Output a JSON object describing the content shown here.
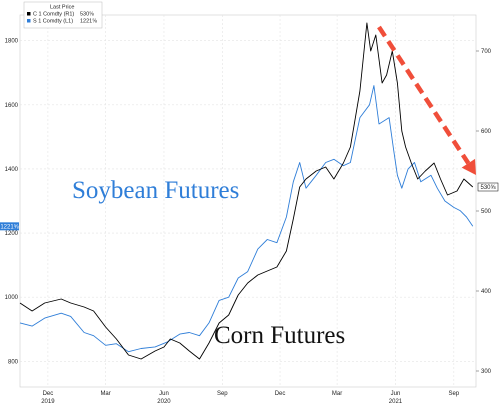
{
  "chart_data": {
    "type": "line",
    "legend": {
      "title": "Last Price",
      "entries": [
        {
          "ticker": "C 1 Comdty (R1)",
          "value": "530⅝",
          "color": "#000000"
        },
        {
          "ticker": "S 1 Comdty (L1)",
          "value": "1221⅝",
          "color": "#2f7ed8"
        }
      ],
      "placement": "top-left"
    },
    "left_axis": {
      "ticks": [
        800,
        1000,
        1200,
        1400,
        1600,
        1800
      ],
      "range": [
        720,
        1880
      ],
      "series": "S 1 Comdty"
    },
    "right_axis": {
      "ticks": [
        300,
        400,
        500,
        600,
        700
      ],
      "range": [
        280,
        745
      ],
      "series": "C 1 Comdty"
    },
    "x_axis": {
      "range": [
        "2019-11-01",
        "2021-10-20"
      ],
      "month_ticks": [
        {
          "label": "Dec",
          "date": "2019-12-15"
        },
        {
          "label": "Mar",
          "date": "2020-03-15"
        },
        {
          "label": "Jun",
          "date": "2020-06-15"
        },
        {
          "label": "Sep",
          "date": "2020-09-15"
        },
        {
          "label": "Dec",
          "date": "2020-12-15"
        },
        {
          "label": "Mar",
          "date": "2021-03-15"
        },
        {
          "label": "Jun",
          "date": "2021-06-15"
        },
        {
          "label": "Sep",
          "date": "2021-09-15"
        }
      ],
      "year_labels": [
        {
          "label": "2019",
          "date": "2019-12-15"
        },
        {
          "label": "2020",
          "date": "2020-06-15"
        },
        {
          "label": "2021",
          "date": "2021-06-15"
        }
      ]
    },
    "grid": true,
    "series": [
      {
        "name": "S 1 Comdty",
        "label": "Soybean Futures",
        "axis": "left",
        "color": "#2f7ed8",
        "last_value_label": "1221⅝",
        "points": [
          [
            "2019-11-01",
            920
          ],
          [
            "2019-11-20",
            910
          ],
          [
            "2019-12-10",
            935
          ],
          [
            "2020-01-05",
            950
          ],
          [
            "2020-01-20",
            940
          ],
          [
            "2020-02-10",
            890
          ],
          [
            "2020-02-25",
            880
          ],
          [
            "2020-03-15",
            850
          ],
          [
            "2020-04-01",
            855
          ],
          [
            "2020-04-20",
            830
          ],
          [
            "2020-05-10",
            840
          ],
          [
            "2020-06-01",
            845
          ],
          [
            "2020-06-20",
            860
          ],
          [
            "2020-07-10",
            885
          ],
          [
            "2020-07-25",
            890
          ],
          [
            "2020-08-10",
            880
          ],
          [
            "2020-08-25",
            920
          ],
          [
            "2020-09-10",
            990
          ],
          [
            "2020-09-25",
            1000
          ],
          [
            "2020-10-10",
            1060
          ],
          [
            "2020-10-25",
            1080
          ],
          [
            "2020-11-10",
            1150
          ],
          [
            "2020-11-25",
            1180
          ],
          [
            "2020-12-10",
            1170
          ],
          [
            "2020-12-25",
            1250
          ],
          [
            "2021-01-05",
            1360
          ],
          [
            "2021-01-15",
            1420
          ],
          [
            "2021-01-25",
            1340
          ],
          [
            "2021-02-10",
            1380
          ],
          [
            "2021-02-25",
            1420
          ],
          [
            "2021-03-10",
            1430
          ],
          [
            "2021-03-25",
            1410
          ],
          [
            "2021-04-05",
            1420
          ],
          [
            "2021-04-20",
            1560
          ],
          [
            "2021-05-05",
            1600
          ],
          [
            "2021-05-12",
            1660
          ],
          [
            "2021-05-20",
            1540
          ],
          [
            "2021-06-05",
            1560
          ],
          [
            "2021-06-12",
            1460
          ],
          [
            "2021-06-18",
            1380
          ],
          [
            "2021-06-25",
            1340
          ],
          [
            "2021-07-05",
            1400
          ],
          [
            "2021-07-15",
            1420
          ],
          [
            "2021-07-25",
            1360
          ],
          [
            "2021-08-10",
            1380
          ],
          [
            "2021-08-20",
            1340
          ],
          [
            "2021-09-01",
            1300
          ],
          [
            "2021-09-15",
            1280
          ],
          [
            "2021-09-25",
            1270
          ],
          [
            "2021-10-05",
            1250
          ],
          [
            "2021-10-15",
            1221
          ]
        ]
      },
      {
        "name": "C 1 Comdty",
        "label": "Corn Futures",
        "axis": "right",
        "color": "#000000",
        "last_value_label": "530⅝",
        "points": [
          [
            "2019-11-01",
            385
          ],
          [
            "2019-11-20",
            375
          ],
          [
            "2019-12-10",
            385
          ],
          [
            "2020-01-05",
            390
          ],
          [
            "2020-01-20",
            385
          ],
          [
            "2020-02-10",
            380
          ],
          [
            "2020-02-25",
            375
          ],
          [
            "2020-03-15",
            355
          ],
          [
            "2020-04-01",
            340
          ],
          [
            "2020-04-20",
            320
          ],
          [
            "2020-05-10",
            315
          ],
          [
            "2020-06-01",
            325
          ],
          [
            "2020-06-15",
            330
          ],
          [
            "2020-06-25",
            340
          ],
          [
            "2020-07-10",
            335
          ],
          [
            "2020-07-25",
            325
          ],
          [
            "2020-08-10",
            315
          ],
          [
            "2020-08-25",
            335
          ],
          [
            "2020-09-10",
            360
          ],
          [
            "2020-09-25",
            370
          ],
          [
            "2020-10-10",
            395
          ],
          [
            "2020-10-25",
            410
          ],
          [
            "2020-11-10",
            420
          ],
          [
            "2020-11-25",
            425
          ],
          [
            "2020-12-10",
            430
          ],
          [
            "2020-12-25",
            450
          ],
          [
            "2021-01-05",
            490
          ],
          [
            "2021-01-15",
            530
          ],
          [
            "2021-01-25",
            540
          ],
          [
            "2021-02-10",
            550
          ],
          [
            "2021-02-25",
            555
          ],
          [
            "2021-03-10",
            540
          ],
          [
            "2021-03-25",
            560
          ],
          [
            "2021-04-05",
            580
          ],
          [
            "2021-04-20",
            650
          ],
          [
            "2021-05-01",
            735
          ],
          [
            "2021-05-07",
            700
          ],
          [
            "2021-05-15",
            720
          ],
          [
            "2021-05-25",
            660
          ],
          [
            "2021-06-01",
            670
          ],
          [
            "2021-06-10",
            700
          ],
          [
            "2021-06-18",
            660
          ],
          [
            "2021-06-25",
            600
          ],
          [
            "2021-07-01",
            580
          ],
          [
            "2021-07-10",
            560
          ],
          [
            "2021-07-20",
            540
          ],
          [
            "2021-08-01",
            550
          ],
          [
            "2021-08-15",
            560
          ],
          [
            "2021-08-25",
            540
          ],
          [
            "2021-09-05",
            520
          ],
          [
            "2021-09-20",
            525
          ],
          [
            "2021-10-01",
            540
          ],
          [
            "2021-10-15",
            530
          ]
        ]
      }
    ],
    "annotations": {
      "soybean_label": "Soybean Futures",
      "corn_label": "Corn Futures",
      "trend_arrow": {
        "from": [
          "2021-05-20",
          730
        ],
        "to": [
          "2021-10-20",
          545
        ],
        "axis": "right",
        "color": "#f04e3a",
        "style": "dashed"
      }
    }
  }
}
